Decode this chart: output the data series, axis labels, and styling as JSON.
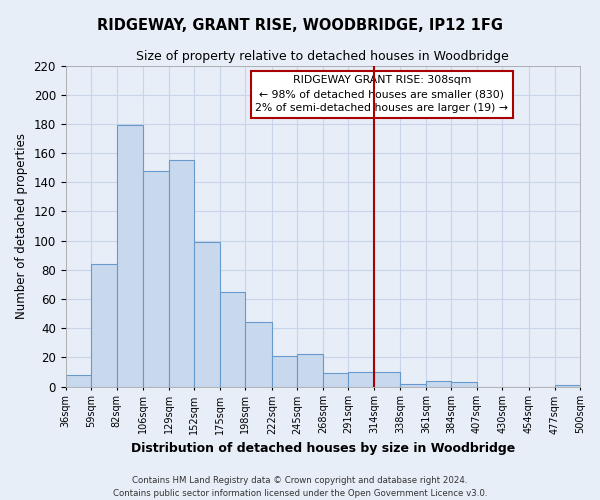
{
  "title": "RIDGEWAY, GRANT RISE, WOODBRIDGE, IP12 1FG",
  "subtitle": "Size of property relative to detached houses in Woodbridge",
  "xlabel": "Distribution of detached houses by size in Woodbridge",
  "ylabel": "Number of detached properties",
  "bin_labels": [
    "36sqm",
    "59sqm",
    "82sqm",
    "106sqm",
    "129sqm",
    "152sqm",
    "175sqm",
    "198sqm",
    "222sqm",
    "245sqm",
    "268sqm",
    "291sqm",
    "314sqm",
    "338sqm",
    "361sqm",
    "384sqm",
    "407sqm",
    "430sqm",
    "454sqm",
    "477sqm",
    "500sqm"
  ],
  "bin_edges": [
    36,
    59,
    82,
    106,
    129,
    152,
    175,
    198,
    222,
    245,
    268,
    291,
    314,
    338,
    361,
    384,
    407,
    430,
    454,
    477,
    500
  ],
  "bar_values": [
    8,
    84,
    179,
    148,
    155,
    99,
    65,
    44,
    21,
    22,
    9,
    10,
    10,
    2,
    4,
    3,
    0,
    0,
    0,
    1
  ],
  "bar_color": "#c8d9ee",
  "bar_edge_color": "#6699cc",
  "reference_line_x": 314,
  "ylim": [
    0,
    220
  ],
  "yticks": [
    0,
    20,
    40,
    60,
    80,
    100,
    120,
    140,
    160,
    180,
    200,
    220
  ],
  "annotation_title": "RIDGEWAY GRANT RISE: 308sqm",
  "annotation_line1": "← 98% of detached houses are smaller (830)",
  "annotation_line2": "2% of semi-detached houses are larger (19) →",
  "footer_line1": "Contains HM Land Registry data © Crown copyright and database right 2024.",
  "footer_line2": "Contains public sector information licensed under the Open Government Licence v3.0.",
  "background_color": "#e8eef8",
  "grid_color": "#c8d4e8",
  "ref_line_color": "#aa0000"
}
